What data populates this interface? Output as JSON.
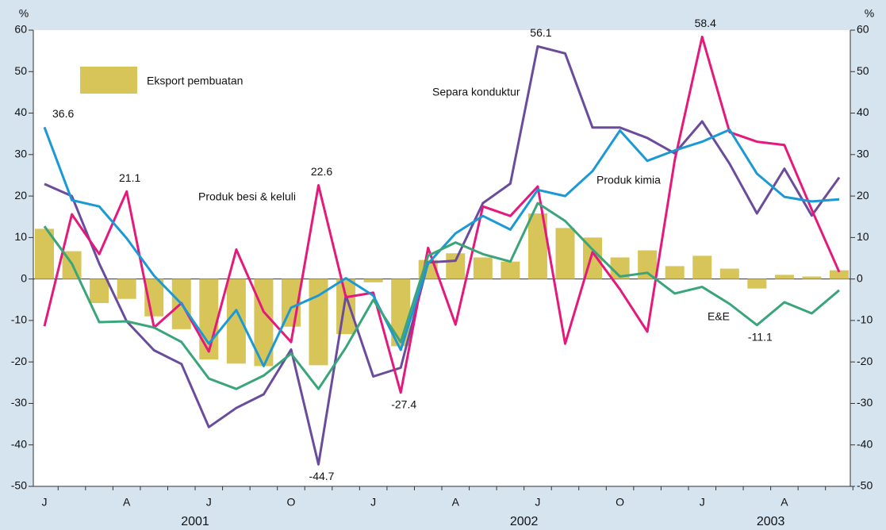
{
  "chart_data": {
    "type": "bar-line",
    "ylabel": "%",
    "y2label": "%",
    "ylim": [
      -50,
      60
    ],
    "yticks": [
      -50,
      -40,
      -30,
      -20,
      -10,
      0,
      10,
      20,
      30,
      40,
      50,
      60
    ],
    "y2lim": [
      -50,
      60
    ],
    "y2ticks": [
      -50,
      -40,
      -30,
      -20,
      -10,
      0,
      10,
      20,
      30,
      40,
      50,
      60
    ],
    "categories": [
      "J",
      null,
      null,
      "A",
      null,
      null,
      "J",
      null,
      null,
      "O",
      null,
      null,
      "J",
      null,
      null,
      "A",
      null,
      null,
      "J",
      null,
      null,
      "O",
      null,
      null,
      "J",
      null,
      null,
      "A",
      null,
      null
    ],
    "years": [
      "2001",
      "2002",
      "2003"
    ],
    "bars": {
      "name": "Eksport pembuatan",
      "color": "#d8c55a",
      "values": [
        12.1,
        6.7,
        -5.8,
        -4.8,
        -9,
        -12.1,
        -19.4,
        -20.4,
        -21,
        -11.5,
        -20.8,
        -13.3,
        -0.8,
        -16.2,
        4.6,
        6.2,
        5.2,
        4.2,
        15.8,
        12.3,
        10,
        5.2,
        6.9,
        3.1,
        5.6,
        2.5,
        -2.3,
        1,
        0.6,
        2.1
      ]
    },
    "series": [
      {
        "name": "Separa konduktur",
        "color": "#6a4b9c",
        "values": [
          22.9,
          20,
          3.7,
          -10.2,
          -17.2,
          -20.5,
          -35.7,
          -31.1,
          -27.8,
          -17,
          -44.7,
          -4,
          -23.5,
          -21.4,
          4,
          4.4,
          18.3,
          23,
          56.1,
          54.4,
          36.5,
          36.5,
          34,
          30.3,
          38,
          27.8,
          15.8,
          26.6,
          15.3,
          24.5
        ],
        "value_labels": [
          null,
          null,
          null,
          null,
          null,
          null,
          null,
          null,
          null,
          null,
          "-44.7",
          null,
          null,
          null,
          null,
          null,
          null,
          null,
          "56.1",
          null,
          null,
          null,
          null,
          null,
          null,
          null,
          null,
          null,
          null,
          null
        ]
      },
      {
        "name": "Produk besi & keluli",
        "color": "#e5197b",
        "values": [
          -11.4,
          15.6,
          6,
          21.1,
          -11.7,
          -5.8,
          -17.5,
          7.1,
          -7.9,
          -15.2,
          22.6,
          -4.4,
          -3.3,
          -27.4,
          7.5,
          -11,
          17.5,
          15.2,
          22.3,
          -15.6,
          6.5,
          -2.5,
          -12.7,
          28.7,
          58.4,
          35.4,
          33.1,
          32.3,
          16.7,
          1.7
        ],
        "value_labels": [
          null,
          null,
          null,
          "21.1",
          null,
          null,
          null,
          null,
          null,
          null,
          "22.6",
          null,
          null,
          "-27.4",
          null,
          null,
          null,
          null,
          null,
          null,
          null,
          null,
          null,
          null,
          "58.4",
          null,
          null,
          null,
          null,
          null
        ]
      },
      {
        "name": "Produk kimia",
        "color": "#1b99d5",
        "values": [
          36.6,
          19,
          17.5,
          9.8,
          0.8,
          -6,
          -15.6,
          -7.5,
          -21,
          -6.9,
          -4,
          0.2,
          -4,
          -17.1,
          3.7,
          11,
          15.2,
          11.9,
          21.5,
          20,
          26,
          35.8,
          28.5,
          31,
          33.1,
          36,
          25.4,
          19.8,
          18.7,
          19.2
        ],
        "value_labels": [
          "36.6",
          null,
          null,
          null,
          null,
          null,
          null,
          null,
          null,
          null,
          null,
          null,
          null,
          null,
          null,
          null,
          null,
          null,
          null,
          null,
          null,
          null,
          null,
          null,
          null,
          null,
          null,
          null,
          null,
          null
        ]
      },
      {
        "name": "E&E",
        "color": "#3aa47a",
        "values": [
          12.7,
          3.7,
          -10.4,
          -10.2,
          -11.7,
          -15.2,
          -24,
          -26.5,
          -23.3,
          -18,
          -26.5,
          -16.5,
          -5,
          -15.2,
          5.6,
          8.8,
          6,
          4.2,
          18.3,
          14,
          7.1,
          0.6,
          1.5,
          -3.5,
          -1.9,
          -6,
          -11.1,
          -5.6,
          -8.3,
          -2.7
        ],
        "value_labels": [
          null,
          null,
          null,
          null,
          null,
          null,
          null,
          null,
          null,
          null,
          null,
          null,
          null,
          null,
          null,
          null,
          null,
          null,
          null,
          null,
          null,
          null,
          null,
          null,
          null,
          null,
          "-11.1",
          null,
          null,
          null
        ]
      }
    ]
  }
}
